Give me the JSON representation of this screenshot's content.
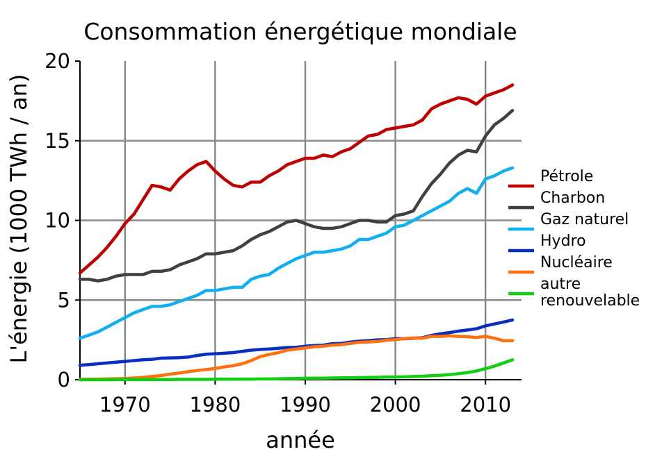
{
  "chart_data": {
    "type": "line",
    "title": "Consommation énergétique mondiale",
    "xlabel": "année",
    "ylabel": "L'énergie (1000 TWh / an)",
    "xlim": [
      1965,
      2014
    ],
    "ylim": [
      0,
      20
    ],
    "x_ticks": [
      1970,
      1980,
      1990,
      2000,
      2010
    ],
    "y_ticks": [
      0,
      5,
      10,
      15,
      20
    ],
    "grid": "vertical",
    "legend_position": "right",
    "x": [
      1965,
      1966,
      1967,
      1968,
      1969,
      1970,
      1971,
      1972,
      1973,
      1974,
      1975,
      1976,
      1977,
      1978,
      1979,
      1980,
      1981,
      1982,
      1983,
      1984,
      1985,
      1986,
      1987,
      1988,
      1989,
      1990,
      1991,
      1992,
      1993,
      1994,
      1995,
      1996,
      1997,
      1998,
      1999,
      2000,
      2001,
      2002,
      2003,
      2004,
      2005,
      2006,
      2007,
      2008,
      2009,
      2010,
      2011,
      2012,
      2013
    ],
    "series": [
      {
        "name": "Pétrole",
        "color": "#c00000",
        "values": [
          6.7,
          7.2,
          7.7,
          8.3,
          9.0,
          9.8,
          10.4,
          11.3,
          12.2,
          12.1,
          11.9,
          12.6,
          13.1,
          13.5,
          13.7,
          13.1,
          12.6,
          12.2,
          12.1,
          12.4,
          12.4,
          12.8,
          13.1,
          13.5,
          13.7,
          13.9,
          13.9,
          14.1,
          14.0,
          14.3,
          14.5,
          14.9,
          15.3,
          15.4,
          15.7,
          15.8,
          15.9,
          16.0,
          16.3,
          17.0,
          17.3,
          17.5,
          17.7,
          17.6,
          17.3,
          17.8,
          18.0,
          18.2,
          18.5
        ]
      },
      {
        "name": "Charbon",
        "color": "#404040",
        "values": [
          6.3,
          6.3,
          6.2,
          6.3,
          6.5,
          6.6,
          6.6,
          6.6,
          6.8,
          6.8,
          6.9,
          7.2,
          7.4,
          7.6,
          7.9,
          7.9,
          8.0,
          8.1,
          8.4,
          8.8,
          9.1,
          9.3,
          9.6,
          9.9,
          10.0,
          9.8,
          9.6,
          9.5,
          9.5,
          9.6,
          9.8,
          10.0,
          10.0,
          9.9,
          9.9,
          10.3,
          10.4,
          10.6,
          11.5,
          12.3,
          12.9,
          13.6,
          14.1,
          14.4,
          14.3,
          15.3,
          16.0,
          16.4,
          16.9
        ]
      },
      {
        "name": "Gaz naturel",
        "color": "#10b0f0",
        "values": [
          2.6,
          2.8,
          3.0,
          3.3,
          3.6,
          3.9,
          4.2,
          4.4,
          4.6,
          4.6,
          4.7,
          4.9,
          5.1,
          5.3,
          5.6,
          5.6,
          5.7,
          5.8,
          5.8,
          6.3,
          6.5,
          6.6,
          7.0,
          7.3,
          7.6,
          7.8,
          8.0,
          8.0,
          8.1,
          8.2,
          8.4,
          8.8,
          8.8,
          9.0,
          9.2,
          9.6,
          9.7,
          10.0,
          10.3,
          10.6,
          10.9,
          11.2,
          11.7,
          12.0,
          11.7,
          12.6,
          12.8,
          13.1,
          13.3
        ]
      },
      {
        "name": "Hydro",
        "color": "#0a2fbf",
        "values": [
          0.9,
          0.95,
          1.0,
          1.05,
          1.1,
          1.15,
          1.2,
          1.25,
          1.28,
          1.35,
          1.37,
          1.38,
          1.42,
          1.52,
          1.6,
          1.63,
          1.66,
          1.7,
          1.78,
          1.85,
          1.9,
          1.93,
          1.97,
          2.02,
          2.04,
          2.1,
          2.15,
          2.17,
          2.26,
          2.28,
          2.36,
          2.42,
          2.45,
          2.5,
          2.52,
          2.58,
          2.57,
          2.6,
          2.63,
          2.78,
          2.88,
          2.96,
          3.05,
          3.12,
          3.2,
          3.38,
          3.5,
          3.62,
          3.75
        ]
      },
      {
        "name": "Nucléaire",
        "color": "#ff7010",
        "values": [
          0.02,
          0.03,
          0.04,
          0.05,
          0.06,
          0.08,
          0.11,
          0.15,
          0.2,
          0.26,
          0.35,
          0.42,
          0.5,
          0.58,
          0.64,
          0.7,
          0.8,
          0.88,
          1.0,
          1.2,
          1.45,
          1.58,
          1.7,
          1.85,
          1.92,
          2.0,
          2.07,
          2.1,
          2.17,
          2.2,
          2.28,
          2.35,
          2.37,
          2.4,
          2.48,
          2.52,
          2.58,
          2.62,
          2.6,
          2.72,
          2.72,
          2.76,
          2.72,
          2.7,
          2.65,
          2.72,
          2.6,
          2.45,
          2.45
        ]
      },
      {
        "name": "autre renouvelable",
        "color": "#10d010",
        "values": [
          0.0,
          0.0,
          0.0,
          0.0,
          0.0,
          0.01,
          0.01,
          0.01,
          0.01,
          0.01,
          0.01,
          0.02,
          0.02,
          0.02,
          0.02,
          0.03,
          0.03,
          0.03,
          0.04,
          0.04,
          0.05,
          0.05,
          0.06,
          0.07,
          0.08,
          0.09,
          0.1,
          0.1,
          0.11,
          0.12,
          0.12,
          0.13,
          0.14,
          0.15,
          0.16,
          0.17,
          0.18,
          0.2,
          0.22,
          0.25,
          0.28,
          0.32,
          0.38,
          0.45,
          0.55,
          0.7,
          0.85,
          1.05,
          1.25
        ]
      }
    ]
  }
}
